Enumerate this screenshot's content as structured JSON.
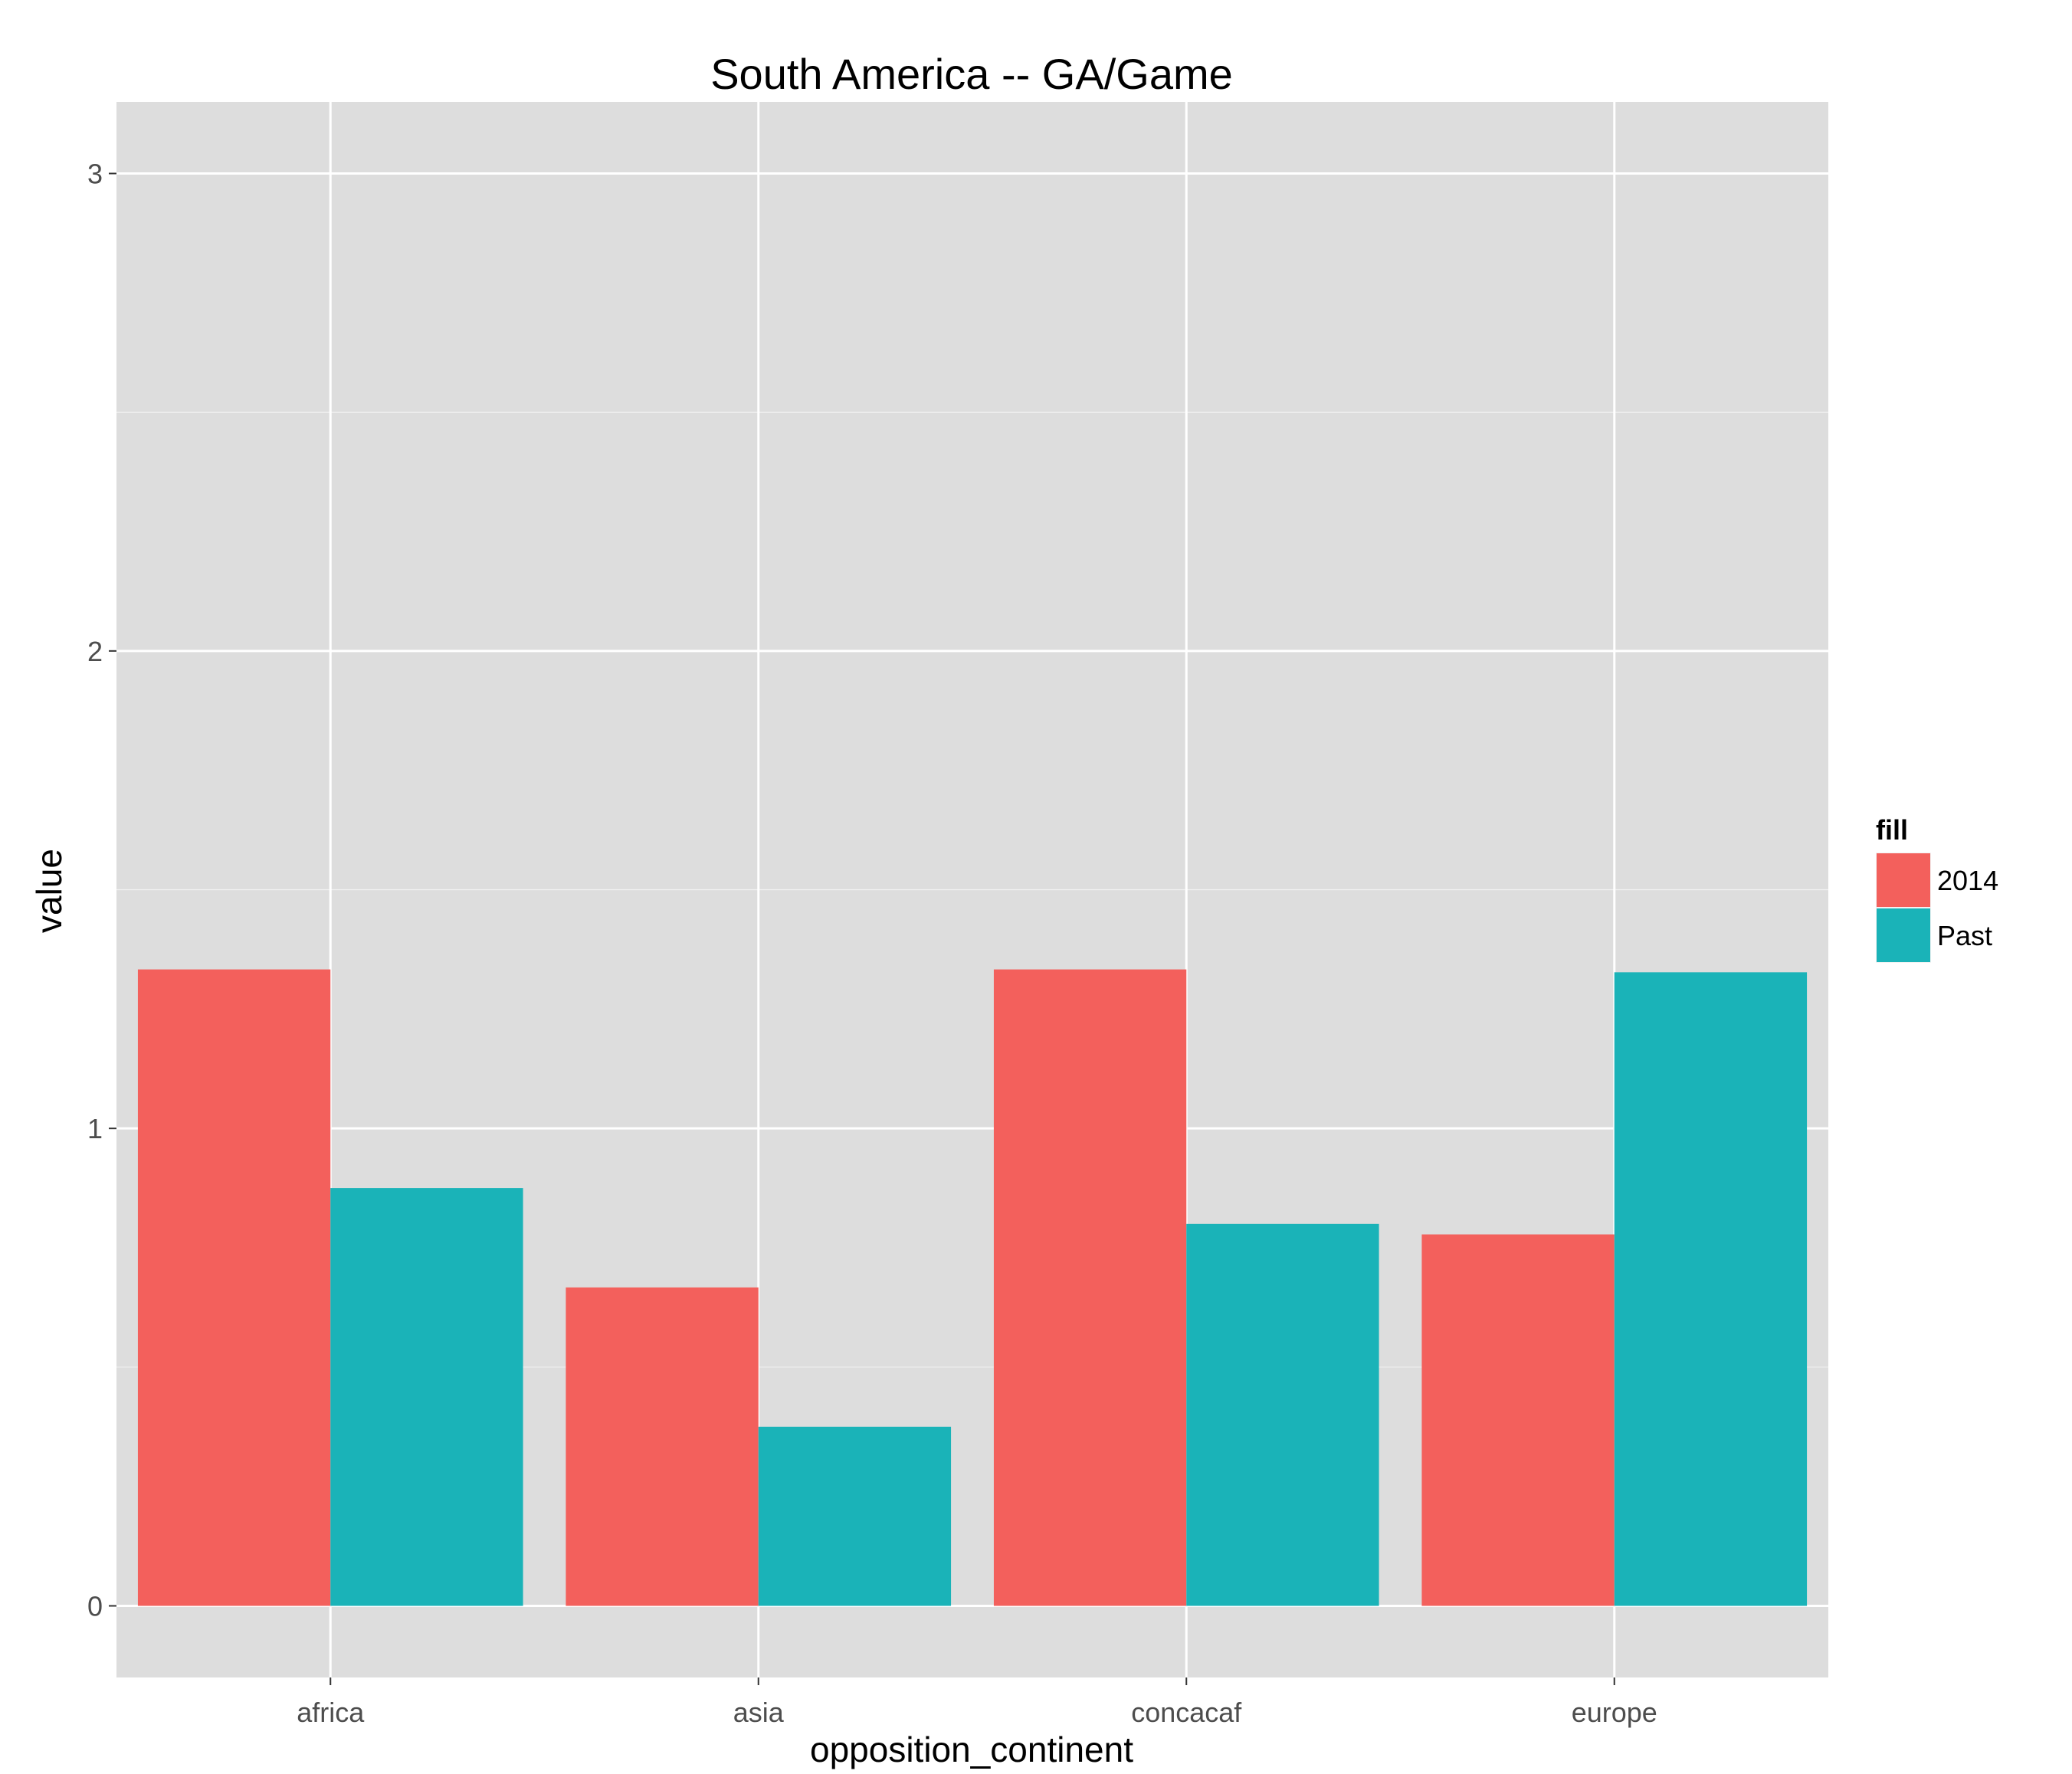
{
  "chart_data": {
    "type": "bar",
    "title": "South America -- GA/Game",
    "xlabel": "opposition_continent",
    "ylabel": "value",
    "categories": [
      "africa",
      "asia",
      "concacaf",
      "europe"
    ],
    "series": [
      {
        "name": "2014",
        "values": [
          1.333,
          0.667,
          1.333,
          0.778
        ]
      },
      {
        "name": "Past",
        "values": [
          0.875,
          0.375,
          0.8,
          1.327
        ]
      }
    ],
    "ylim": [
      -0.15,
      3.15
    ],
    "y_ticks": [
      0,
      1,
      2,
      3
    ],
    "grid": true,
    "legend": {
      "title": "fill",
      "position": "right"
    },
    "colors": {
      "2014": "#F3605C",
      "Past": "#1AB3B8",
      "panel_background": "#DDDDDD",
      "grid_line": "#FFFFFF"
    }
  }
}
